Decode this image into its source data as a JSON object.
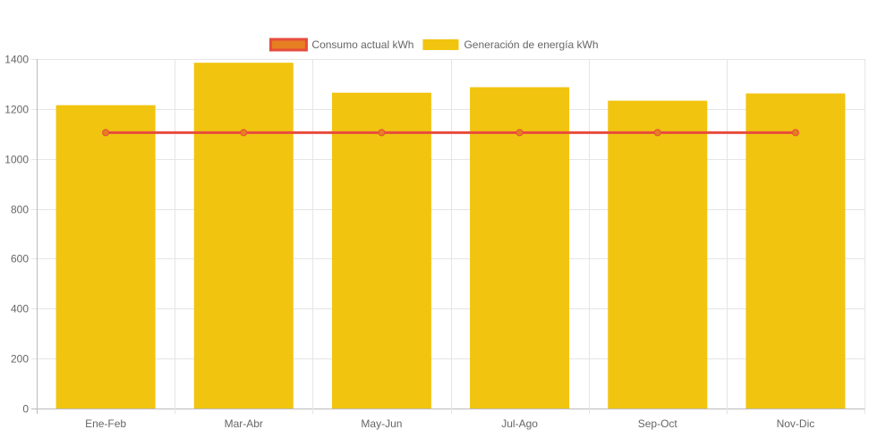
{
  "chart_data": {
    "type": "bar",
    "categories": [
      "Ene-Feb",
      "Mar-Abr",
      "May-Jun",
      "Jul-Ago",
      "Sep-Oct",
      "Nov-Dic"
    ],
    "series": [
      {
        "name": "Consumo actual kWh",
        "type": "line",
        "values": [
          1105,
          1105,
          1105,
          1105,
          1105,
          1105
        ],
        "color": "#e74c3c",
        "fill_color": "#e67e22"
      },
      {
        "name": "Generación de energía kWh",
        "type": "bar",
        "values": [
          1215,
          1385,
          1265,
          1287,
          1233,
          1262
        ],
        "color": "#f1c40f"
      }
    ],
    "y_ticks": [
      0,
      200,
      400,
      600,
      800,
      1000,
      1200,
      1400
    ],
    "ylim": [
      0,
      1400
    ],
    "grid": true,
    "legend_position": "top-center",
    "title": "",
    "xlabel": "",
    "ylabel": ""
  }
}
